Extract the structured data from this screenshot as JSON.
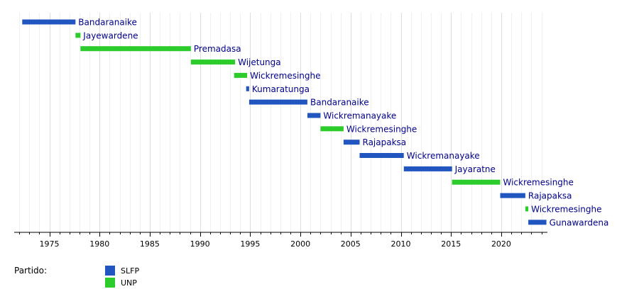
{
  "chart_data": {
    "type": "timeline",
    "title": "",
    "xlim": [
      1971.5,
      2024.6
    ],
    "x_ticks": [
      1975,
      1980,
      1985,
      1990,
      1995,
      2000,
      2005,
      2010,
      2015,
      2020
    ],
    "grid": true,
    "parties": [
      {
        "key": "SLFP",
        "label": "SLFP",
        "color": "#2155c0"
      },
      {
        "key": "UNP",
        "label": "UNP",
        "color": "#2ccc2c"
      }
    ],
    "legend_title": "Partido:",
    "entries": [
      {
        "name": "Bandaranaike",
        "party": "SLFP",
        "start": 1972.3,
        "end": 1977.6
      },
      {
        "name": "Jayewardene",
        "party": "UNP",
        "start": 1977.6,
        "end": 1978.1
      },
      {
        "name": "Premadasa",
        "party": "UNP",
        "start": 1978.1,
        "end": 1989.1
      },
      {
        "name": "Wijetunga",
        "party": "UNP",
        "start": 1989.1,
        "end": 1993.5
      },
      {
        "name": "Wickremesinghe",
        "party": "UNP",
        "start": 1993.4,
        "end": 1994.7
      },
      {
        "name": "Kumaratunga",
        "party": "SLFP",
        "start": 1994.6,
        "end": 1994.9
      },
      {
        "name": "Bandaranaike",
        "party": "SLFP",
        "start": 1994.9,
        "end": 2000.7
      },
      {
        "name": "Wickremanayake",
        "party": "SLFP",
        "start": 2000.7,
        "end": 2002.0
      },
      {
        "name": "Wickremesinghe",
        "party": "UNP",
        "start": 2002.0,
        "end": 2004.3
      },
      {
        "name": "Rajapaksa",
        "party": "SLFP",
        "start": 2004.3,
        "end": 2005.9
      },
      {
        "name": "Wickremanayake",
        "party": "SLFP",
        "start": 2005.9,
        "end": 2010.3
      },
      {
        "name": "Jayaratne",
        "party": "SLFP",
        "start": 2010.3,
        "end": 2015.1
      },
      {
        "name": "Wickremesinghe",
        "party": "UNP",
        "start": 2015.1,
        "end": 2019.9
      },
      {
        "name": "Rajapaksa",
        "party": "SLFP",
        "start": 2019.9,
        "end": 2022.4
      },
      {
        "name": "Wickremesinghe",
        "party": "UNP",
        "start": 2022.4,
        "end": 2022.7
      },
      {
        "name": "Gunawardena",
        "party": "SLFP",
        "start": 2022.7,
        "end": 2024.5
      }
    ]
  }
}
